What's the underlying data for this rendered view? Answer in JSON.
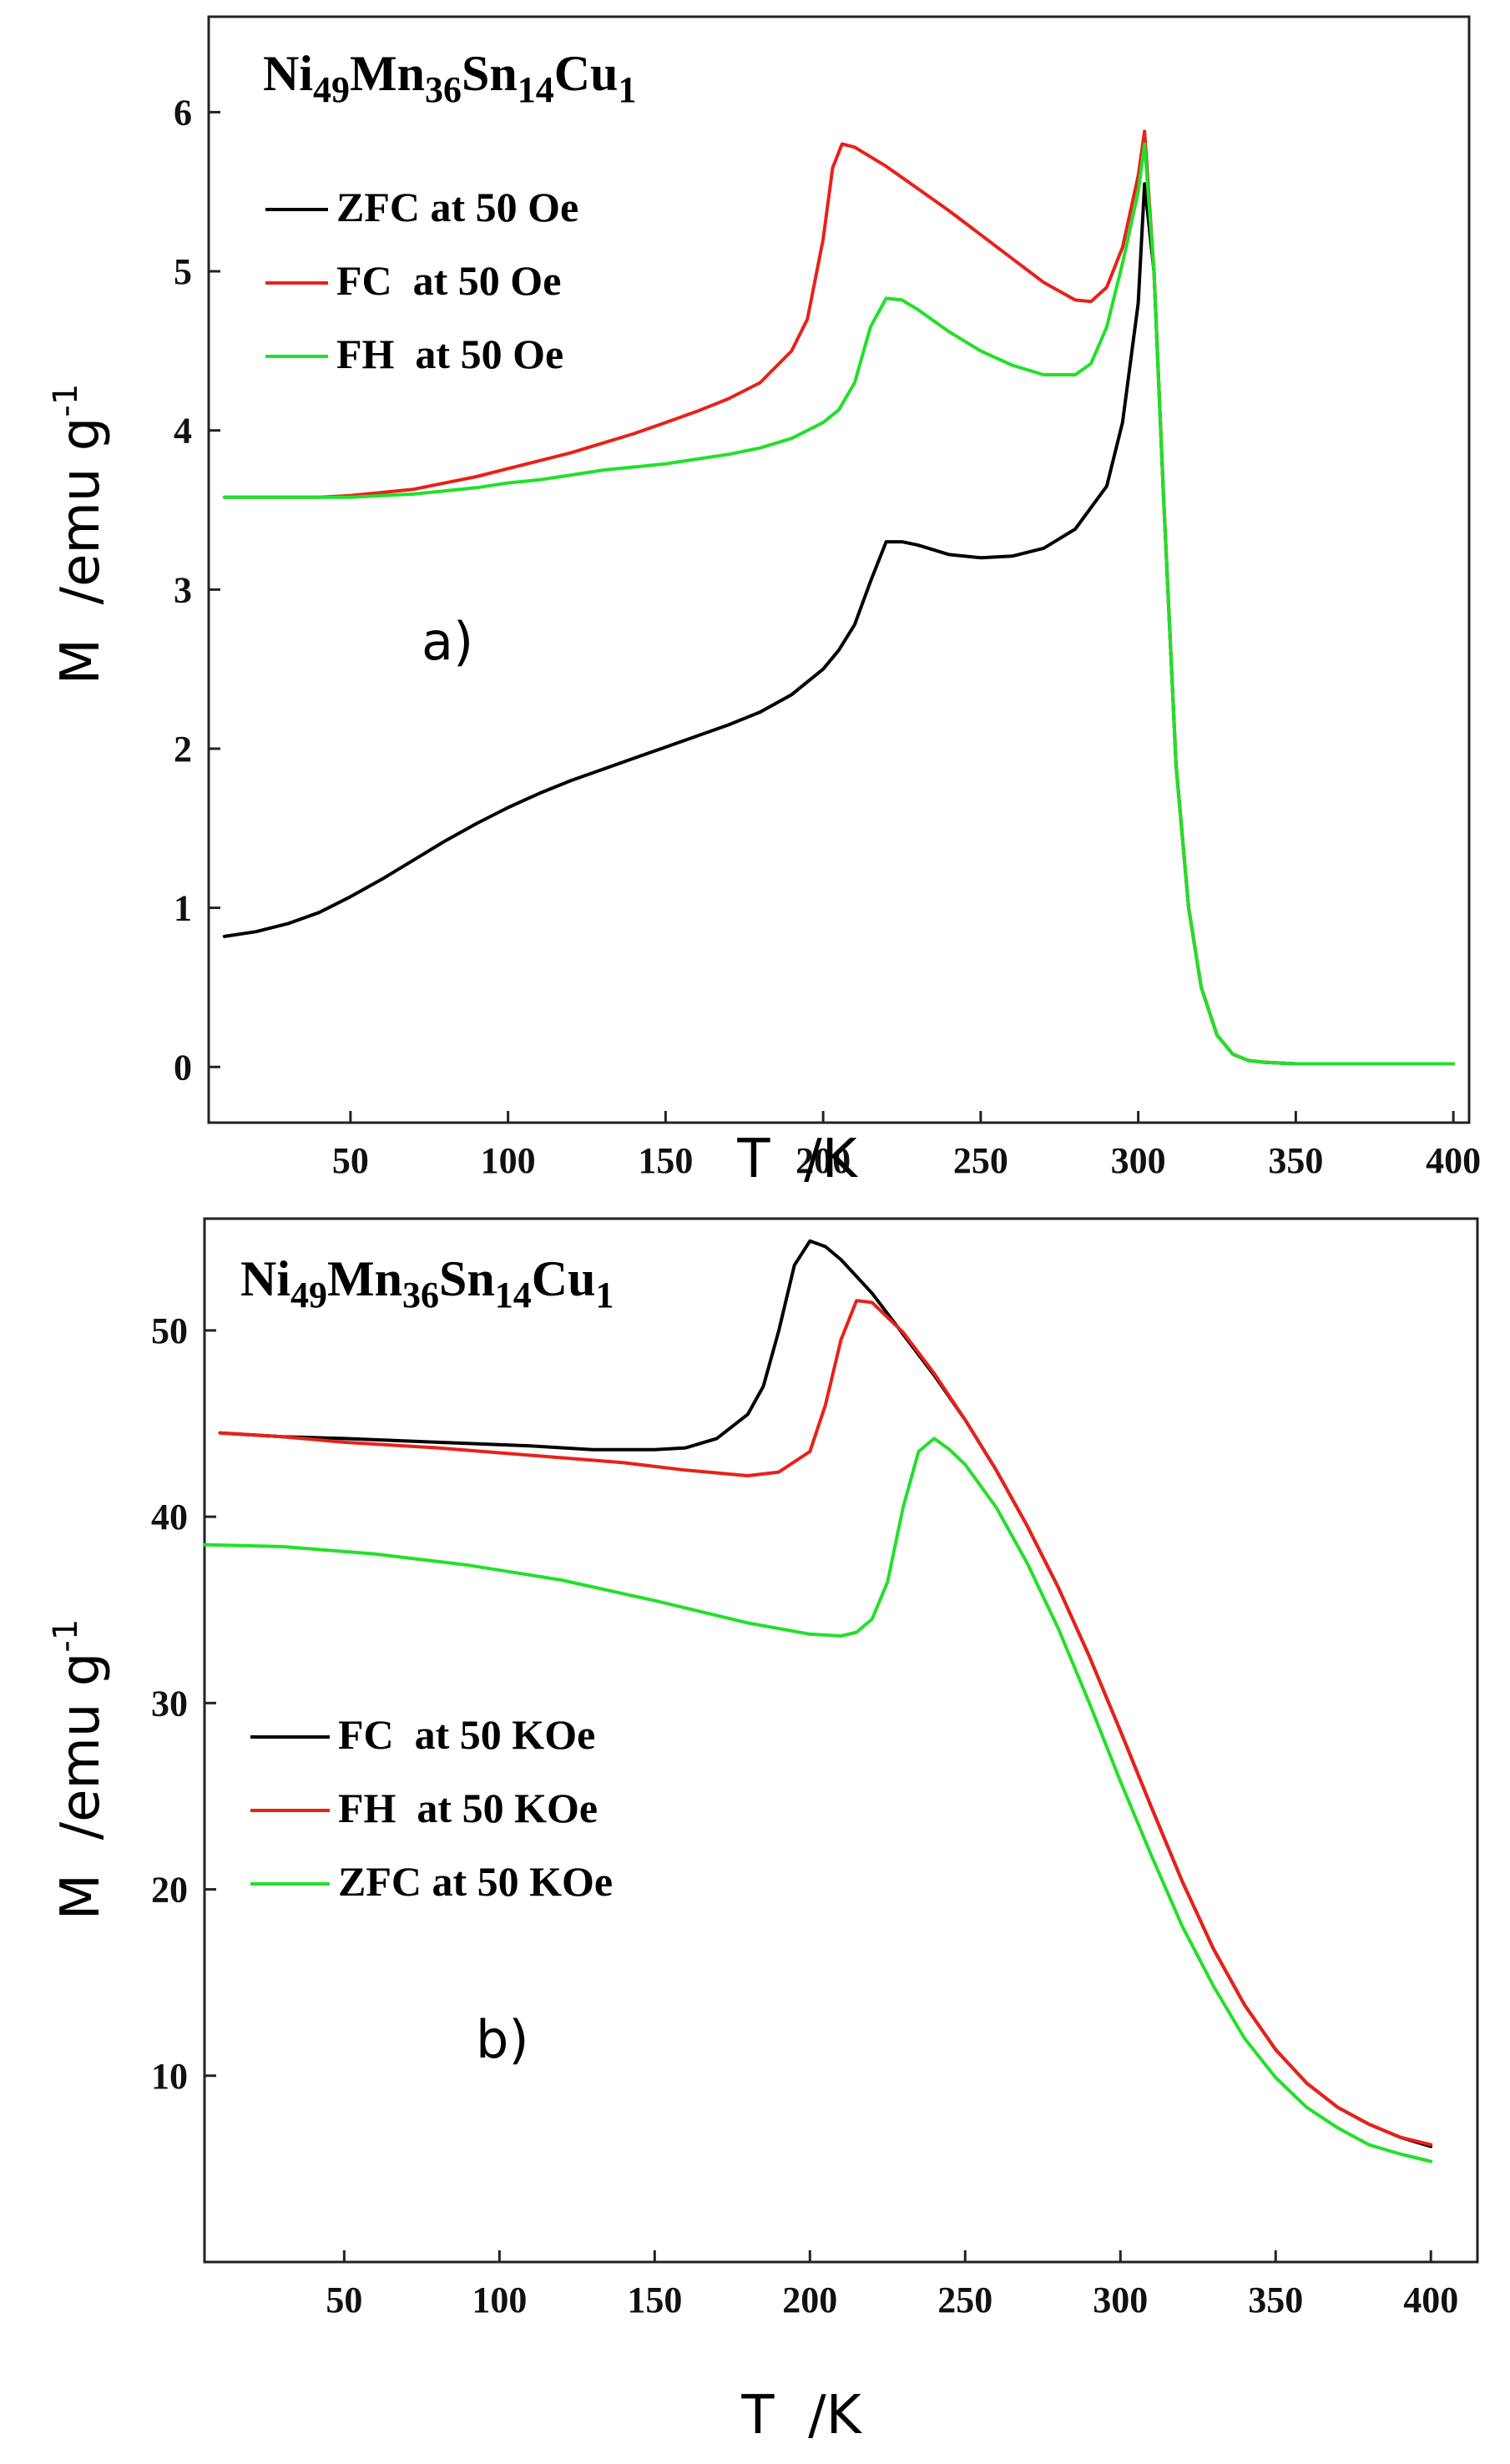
{
  "chart_data": [
    {
      "type": "line",
      "panel": "a)",
      "title_formula": [
        {
          "t": "Ni",
          "sub": false
        },
        {
          "t": "49",
          "sub": true
        },
        {
          "t": "Mn",
          "sub": false
        },
        {
          "t": "36",
          "sub": true
        },
        {
          "t": "Sn",
          "sub": false
        },
        {
          "t": "14",
          "sub": true
        },
        {
          "t": "Cu",
          "sub": false
        },
        {
          "t": "1",
          "sub": true
        }
      ],
      "xlabel": "T  /K",
      "ylabel": "M  /emu g",
      "ylabel_sup": "-1",
      "xlim": [
        5,
        405
      ],
      "ylim": [
        -0.35,
        6.6
      ],
      "xticks": [
        50,
        100,
        150,
        200,
        250,
        300,
        350,
        400
      ],
      "yticks": [
        0,
        1,
        2,
        3,
        4,
        5,
        6
      ],
      "legend_position": "top-left",
      "series": [
        {
          "name": "ZFC at 50 Oe",
          "color": "#000000",
          "x": [
            10,
            20,
            30,
            40,
            50,
            60,
            70,
            80,
            90,
            100,
            110,
            120,
            130,
            140,
            150,
            160,
            170,
            180,
            190,
            200,
            205,
            210,
            215,
            220,
            225,
            230,
            240,
            250,
            260,
            270,
            280,
            290,
            295,
            300,
            302,
            305,
            308,
            312,
            316,
            320,
            325,
            330,
            335,
            340,
            350,
            360,
            370,
            380,
            390,
            400
          ],
          "y": [
            0.82,
            0.85,
            0.9,
            0.97,
            1.07,
            1.18,
            1.3,
            1.42,
            1.53,
            1.63,
            1.72,
            1.8,
            1.87,
            1.94,
            2.01,
            2.08,
            2.15,
            2.23,
            2.34,
            2.5,
            2.62,
            2.78,
            3.05,
            3.3,
            3.3,
            3.28,
            3.22,
            3.2,
            3.21,
            3.26,
            3.38,
            3.65,
            4.05,
            4.8,
            5.55,
            5.0,
            3.6,
            1.9,
            1.0,
            0.5,
            0.2,
            0.08,
            0.04,
            0.03,
            0.02,
            0.02,
            0.02,
            0.02,
            0.02,
            0.02
          ]
        },
        {
          "name": "FC  at 50 Oe",
          "color": "#e8211a",
          "x": [
            10,
            20,
            30,
            40,
            50,
            60,
            70,
            80,
            90,
            100,
            110,
            120,
            130,
            140,
            150,
            160,
            170,
            180,
            190,
            195,
            200,
            203,
            206,
            210,
            220,
            230,
            240,
            250,
            260,
            270,
            280,
            285,
            290,
            295,
            300,
            302,
            305,
            308,
            312,
            316,
            320,
            325,
            330,
            335,
            340,
            350,
            360,
            370,
            380,
            390,
            400
          ],
          "y": [
            3.58,
            3.58,
            3.58,
            3.58,
            3.59,
            3.61,
            3.63,
            3.67,
            3.71,
            3.76,
            3.81,
            3.86,
            3.92,
            3.98,
            4.05,
            4.12,
            4.2,
            4.3,
            4.5,
            4.7,
            5.2,
            5.65,
            5.8,
            5.78,
            5.66,
            5.52,
            5.38,
            5.23,
            5.08,
            4.93,
            4.82,
            4.81,
            4.9,
            5.15,
            5.6,
            5.88,
            5.0,
            3.6,
            1.9,
            1.0,
            0.5,
            0.2,
            0.08,
            0.04,
            0.03,
            0.02,
            0.02,
            0.02,
            0.02,
            0.02,
            0.02
          ]
        },
        {
          "name": "FH  at 50 Oe",
          "color": "#22e02a",
          "x": [
            10,
            20,
            30,
            40,
            50,
            60,
            70,
            80,
            90,
            100,
            110,
            120,
            130,
            140,
            150,
            160,
            170,
            180,
            190,
            200,
            205,
            210,
            215,
            220,
            225,
            230,
            240,
            250,
            260,
            270,
            280,
            285,
            290,
            295,
            300,
            302,
            305,
            308,
            312,
            316,
            320,
            325,
            330,
            335,
            340,
            350,
            360,
            370,
            380,
            390,
            400
          ],
          "y": [
            3.58,
            3.58,
            3.58,
            3.58,
            3.58,
            3.59,
            3.6,
            3.62,
            3.64,
            3.67,
            3.69,
            3.72,
            3.75,
            3.77,
            3.79,
            3.82,
            3.85,
            3.89,
            3.95,
            4.05,
            4.13,
            4.3,
            4.65,
            4.83,
            4.82,
            4.76,
            4.62,
            4.5,
            4.41,
            4.35,
            4.35,
            4.42,
            4.65,
            5.05,
            5.5,
            5.8,
            5.0,
            3.6,
            1.9,
            1.0,
            0.5,
            0.2,
            0.08,
            0.04,
            0.03,
            0.02,
            0.02,
            0.02,
            0.02,
            0.02,
            0.02
          ]
        }
      ]
    },
    {
      "type": "line",
      "panel": "b)",
      "title_formula": [
        {
          "t": "Ni",
          "sub": false
        },
        {
          "t": "49",
          "sub": true
        },
        {
          "t": "Mn",
          "sub": false
        },
        {
          "t": "36",
          "sub": true
        },
        {
          "t": "Sn",
          "sub": false
        },
        {
          "t": "14",
          "sub": true
        },
        {
          "t": "Cu",
          "sub": false
        },
        {
          "t": "1",
          "sub": true
        }
      ],
      "xlabel": "T  /K",
      "ylabel": "M  /emu g",
      "ylabel_sup": "-1",
      "xlim": [
        5,
        415
      ],
      "ylim": [
        0,
        56
      ],
      "xticks": [
        50,
        100,
        150,
        200,
        250,
        300,
        350,
        400
      ],
      "yticks": [
        10,
        20,
        30,
        40,
        50
      ],
      "legend_position": "center-left",
      "series": [
        {
          "name": "FC  at 50 KOe",
          "color": "#000000",
          "x": [
            10,
            30,
            50,
            80,
            110,
            130,
            150,
            160,
            170,
            180,
            185,
            190,
            195,
            200,
            205,
            210,
            220,
            230,
            240,
            250,
            260,
            270,
            280,
            290,
            300,
            310,
            320,
            330,
            340,
            350,
            360,
            370,
            380,
            390,
            400
          ],
          "y": [
            44.5,
            44.3,
            44.2,
            44.0,
            43.8,
            43.6,
            43.6,
            43.7,
            44.2,
            45.5,
            47.0,
            50.0,
            53.5,
            54.8,
            54.5,
            53.8,
            52.0,
            49.8,
            47.6,
            45.2,
            42.5,
            39.5,
            36.2,
            32.5,
            28.5,
            24.4,
            20.4,
            16.8,
            13.8,
            11.4,
            9.6,
            8.3,
            7.4,
            6.7,
            6.2
          ]
        },
        {
          "name": "FH  at 50 KOe",
          "color": "#e8211a",
          "x": [
            10,
            30,
            50,
            80,
            110,
            140,
            160,
            180,
            190,
            200,
            205,
            210,
            215,
            220,
            230,
            240,
            250,
            260,
            270,
            280,
            290,
            300,
            310,
            320,
            330,
            340,
            350,
            360,
            370,
            380,
            390,
            400
          ],
          "y": [
            44.5,
            44.3,
            44.0,
            43.7,
            43.3,
            42.9,
            42.5,
            42.2,
            42.4,
            43.5,
            46.0,
            49.5,
            51.6,
            51.5,
            49.9,
            47.7,
            45.2,
            42.5,
            39.5,
            36.2,
            32.5,
            28.5,
            24.4,
            20.4,
            16.8,
            13.8,
            11.4,
            9.6,
            8.3,
            7.4,
            6.7,
            6.3
          ]
        },
        {
          "name": "ZFC at 50 KOe",
          "color": "#22e02a",
          "x": [
            5,
            30,
            60,
            90,
            120,
            150,
            180,
            200,
            210,
            215,
            220,
            225,
            230,
            235,
            240,
            245,
            250,
            260,
            270,
            280,
            290,
            300,
            310,
            320,
            330,
            340,
            350,
            360,
            370,
            380,
            390,
            400
          ],
          "y": [
            38.5,
            38.4,
            38.0,
            37.4,
            36.6,
            35.5,
            34.3,
            33.7,
            33.6,
            33.8,
            34.5,
            36.5,
            40.5,
            43.5,
            44.2,
            43.6,
            42.8,
            40.5,
            37.5,
            34.0,
            30.0,
            25.8,
            21.8,
            18.0,
            14.8,
            12.0,
            9.9,
            8.3,
            7.2,
            6.3,
            5.8,
            5.4
          ]
        }
      ]
    }
  ]
}
